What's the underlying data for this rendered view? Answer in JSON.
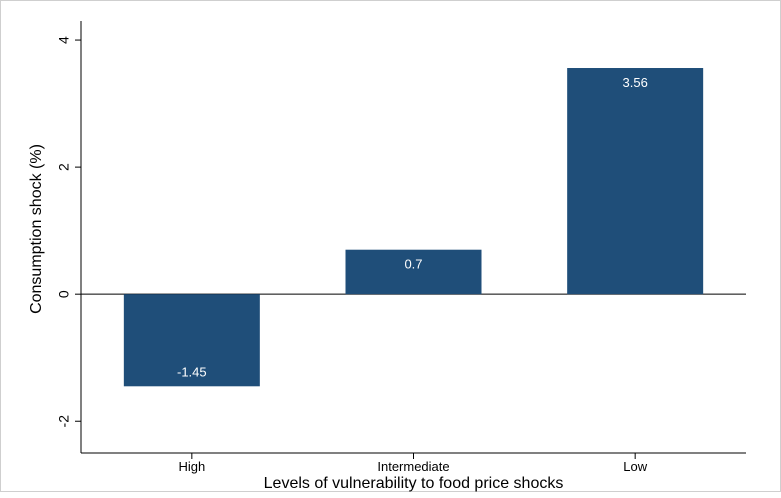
{
  "chart_data": {
    "type": "bar",
    "categories": [
      "High",
      "Intermediate",
      "Low"
    ],
    "values": [
      -1.45,
      0.7,
      3.56
    ],
    "data_labels": [
      "-1.45",
      "0.7",
      "3.56"
    ],
    "xlabel": "Levels of vulnerability to food price shocks",
    "ylabel": "Consumption shock (%)",
    "ylim": [
      -2,
      4
    ],
    "yticks": [
      "-2",
      "0",
      "2",
      "4"
    ],
    "bar_color": "#1f4e79",
    "label_color": "#ffffff",
    "grid": false
  }
}
